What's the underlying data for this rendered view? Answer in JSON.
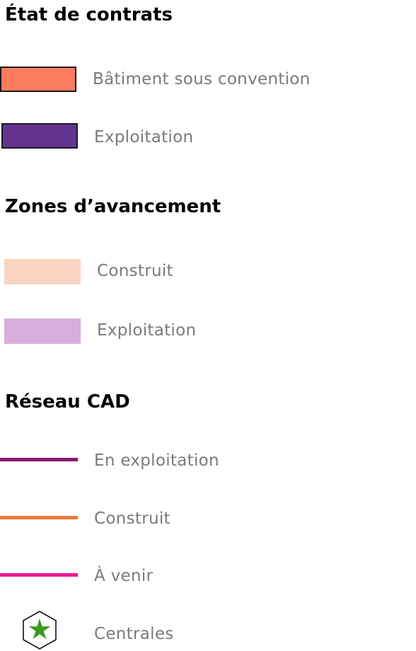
{
  "sections": {
    "contracts": {
      "title": "État de contrats",
      "items": [
        {
          "label": "Bâtiment sous convention",
          "color": "#fb7c5c"
        },
        {
          "label": "Exploitation",
          "color": "#643590"
        }
      ]
    },
    "zones": {
      "title": "Zones d’avancement",
      "items": [
        {
          "label": "Construit",
          "color": "#f9d4c2"
        },
        {
          "label": "Exploitation",
          "color": "#d7aed9"
        }
      ]
    },
    "network": {
      "title": "Réseau CAD",
      "items": [
        {
          "label": "En exploitation",
          "color": "#8b1870"
        },
        {
          "label": "Construit",
          "color": "#ec7a3c"
        },
        {
          "label": "À venir",
          "color": "#ec1a97"
        },
        {
          "label": "Centrales",
          "icon": "hexagon-star-icon",
          "color": "#3c9a22"
        }
      ]
    }
  }
}
